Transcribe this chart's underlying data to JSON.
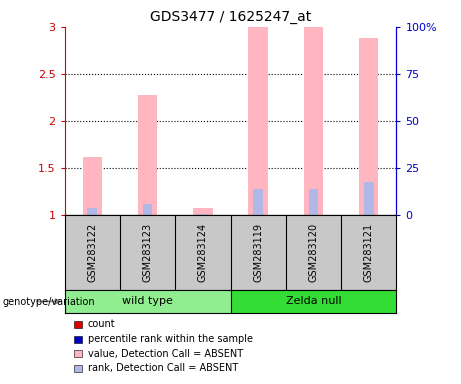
{
  "title": "GDS3477 / 1625247_at",
  "samples": [
    "GSM283122",
    "GSM283123",
    "GSM283124",
    "GSM283119",
    "GSM283120",
    "GSM283121"
  ],
  "bar_values": [
    1.62,
    2.28,
    1.07,
    3.0,
    3.0,
    2.88
  ],
  "rank_values": [
    1.08,
    1.12,
    1.01,
    1.28,
    1.28,
    1.35
  ],
  "ylim_left": [
    1.0,
    3.0
  ],
  "yticks_left": [
    1.0,
    1.5,
    2.0,
    2.5,
    3.0
  ],
  "ytick_labels_left": [
    "1",
    "1.5",
    "2",
    "2.5",
    "3"
  ],
  "yticks_right": [
    0,
    25,
    50,
    75,
    100
  ],
  "ytick_labels_right": [
    "0",
    "25",
    "50",
    "75",
    "100%"
  ],
  "bar_color_absent": "#ffb6c1",
  "rank_color_absent": "#b0b8e8",
  "left_axis_color": "#cc0000",
  "right_axis_color": "#0000cc",
  "group_color_wild": "#90ee90",
  "group_color_zelda": "#33dd33",
  "label_bg_color": "#c8c8c8",
  "bar_width": 0.35,
  "rank_bar_width": 0.18,
  "legend_items": [
    {
      "label": "count",
      "color": "#dd0000"
    },
    {
      "label": "percentile rank within the sample",
      "color": "#0000cc"
    },
    {
      "label": "value, Detection Call = ABSENT",
      "color": "#ffb6c1"
    },
    {
      "label": "rank, Detection Call = ABSENT",
      "color": "#b0b8e8"
    }
  ],
  "genotype_label": "genotype/variation",
  "wt_label": "wild type",
  "zelda_label": "Zelda null",
  "wt_count": 3,
  "zelda_count": 3
}
